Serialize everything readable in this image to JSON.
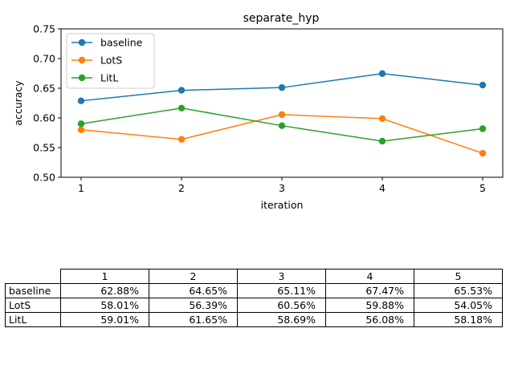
{
  "chart_data": {
    "type": "line",
    "title": "separate_hyp",
    "xlabel": "iteration",
    "ylabel": "accuracy",
    "x": [
      1,
      2,
      3,
      4,
      5
    ],
    "xlim": [
      0.8,
      5.2
    ],
    "ylim": [
      0.5,
      0.75
    ],
    "xticks": [
      "1",
      "2",
      "3",
      "4",
      "5"
    ],
    "yticks": [
      "0.50",
      "0.55",
      "0.60",
      "0.65",
      "0.70",
      "0.75"
    ],
    "grid": false,
    "legend_position": "upper-left",
    "series": [
      {
        "name": "baseline",
        "color": "#1f77b4",
        "values": [
          0.6288,
          0.6465,
          0.6511,
          0.6747,
          0.6553
        ]
      },
      {
        "name": "LotS",
        "color": "#ff7f0e",
        "values": [
          0.5801,
          0.5639,
          0.6056,
          0.5988,
          0.5405
        ]
      },
      {
        "name": "LitL",
        "color": "#2ca02c",
        "values": [
          0.5901,
          0.6165,
          0.5869,
          0.5608,
          0.5818
        ]
      }
    ]
  },
  "table": {
    "columns": [
      "1",
      "2",
      "3",
      "4",
      "5"
    ],
    "rows": [
      {
        "label": "baseline",
        "cells": [
          "62.88%",
          "64.65%",
          "65.11%",
          "67.47%",
          "65.53%"
        ]
      },
      {
        "label": "LotS",
        "cells": [
          "58.01%",
          "56.39%",
          "60.56%",
          "59.88%",
          "54.05%"
        ]
      },
      {
        "label": "LitL",
        "cells": [
          "59.01%",
          "61.65%",
          "58.69%",
          "56.08%",
          "58.18%"
        ]
      }
    ]
  }
}
